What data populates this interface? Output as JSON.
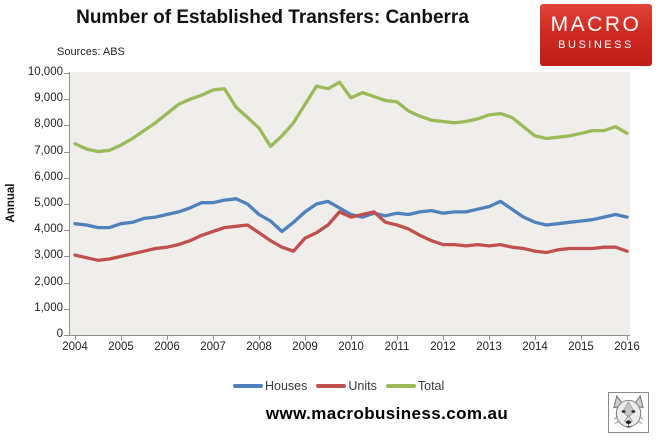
{
  "header": {
    "title": "Number of Established Transfers: Canberra",
    "source": "Sources: ABS"
  },
  "logo": {
    "line1": "MACRO",
    "line2": "BUSINESS",
    "bg_color": "#C8241C",
    "text_color": "#FFFFFF"
  },
  "footer": {
    "url": "www.macrobusiness.com.au"
  },
  "chart_data": {
    "type": "line",
    "title": "Number of Established Transfers: Canberra",
    "xlabel": "",
    "ylabel": "Annual",
    "ylim": [
      0,
      10000
    ],
    "grid": false,
    "plot_bg": "#EFEEEB",
    "axis_color": "#8f8f8f",
    "legend_position": "bottom",
    "x_start_year": 2004,
    "points_per_year": 4,
    "x_tick_labels": [
      "2004",
      "2005",
      "2006",
      "2007",
      "2008",
      "2009",
      "2010",
      "2011",
      "2012",
      "2013",
      "2014",
      "2015",
      "2016"
    ],
    "y_tick_labels": [
      "0",
      "1,000",
      "2,000",
      "3,000",
      "4,000",
      "5,000",
      "6,000",
      "7,000",
      "8,000",
      "9,000",
      "10,000"
    ],
    "series": [
      {
        "name": "Houses",
        "color": "#4F81BD",
        "values": [
          4250,
          4200,
          4100,
          4100,
          4250,
          4300,
          4450,
          4500,
          4600,
          4700,
          4850,
          5050,
          5050,
          5150,
          5200,
          5000,
          4600,
          4350,
          3950,
          4300,
          4700,
          5000,
          5100,
          4850,
          4600,
          4500,
          4650,
          4550,
          4650,
          4600,
          4700,
          4750,
          4650,
          4700,
          4700,
          4800,
          4900,
          5100,
          4800,
          4500,
          4300,
          4200,
          4250,
          4300,
          4350,
          4400,
          4500,
          4600,
          4500
        ]
      },
      {
        "name": "Units",
        "color": "#C0504D",
        "values": [
          3050,
          2950,
          2850,
          2900,
          3000,
          3100,
          3200,
          3300,
          3350,
          3450,
          3600,
          3800,
          3950,
          4100,
          4150,
          4200,
          3900,
          3600,
          3350,
          3200,
          3700,
          3900,
          4200,
          4700,
          4500,
          4600,
          4700,
          4300,
          4200,
          4050,
          3800,
          3600,
          3450,
          3450,
          3400,
          3450,
          3400,
          3450,
          3350,
          3300,
          3200,
          3150,
          3250,
          3300,
          3300,
          3300,
          3350,
          3350,
          3200
        ]
      },
      {
        "name": "Total",
        "color": "#9BBB59",
        "values": [
          7300,
          7100,
          7000,
          7050,
          7250,
          7500,
          7800,
          8100,
          8450,
          8800,
          9000,
          9150,
          9350,
          9400,
          8700,
          8300,
          7900,
          7200,
          7600,
          8100,
          8800,
          9500,
          9400,
          9650,
          9050,
          9250,
          9100,
          8950,
          8900,
          8550,
          8350,
          8200,
          8150,
          8100,
          8150,
          8250,
          8400,
          8450,
          8300,
          7950,
          7600,
          7500,
          7550,
          7600,
          7700,
          7800,
          7800,
          7950,
          7700
        ]
      }
    ]
  }
}
